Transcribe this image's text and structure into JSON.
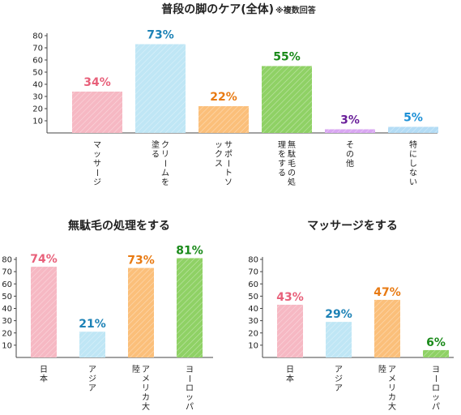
{
  "chart_data": [
    {
      "type": "bar",
      "title": "普段の脚のケア(全体)",
      "title_note": "※複数回答",
      "categories": [
        "マッサージ",
        "クリームを塗る",
        "サポートソックス",
        "無駄毛の処理をする",
        "その他",
        "特にしない"
      ],
      "values": [
        34,
        73,
        22,
        55,
        3,
        5
      ],
      "value_labels": [
        "34%",
        "73%",
        "22%",
        "55%",
        "3%",
        "5%"
      ],
      "colors": [
        "#f6b8c3",
        "#bfe6f5",
        "#fbbf7a",
        "#8fd165",
        "#d9a6f2",
        "#b3dcf5"
      ],
      "label_colors": [
        "#e8607a",
        "#1d82b6",
        "#e87a12",
        "#1a8a1a",
        "#6a1f9a",
        "#1d90d6"
      ],
      "ylim": [
        0,
        80
      ],
      "yticks": [
        10,
        20,
        30,
        40,
        50,
        60,
        70,
        80
      ]
    },
    {
      "type": "bar",
      "title": "無駄毛の処理をする",
      "categories": [
        "日本",
        "アジア",
        "アメリカ大陸",
        "ヨーロッパ"
      ],
      "values": [
        74,
        21,
        73,
        81
      ],
      "value_labels": [
        "74%",
        "21%",
        "73%",
        "81%"
      ],
      "colors": [
        "#f6b8c3",
        "#bfe6f5",
        "#fbbf7a",
        "#8fd165"
      ],
      "label_colors": [
        "#e8607a",
        "#1d82b6",
        "#e87a12",
        "#1a8a1a"
      ],
      "ylim": [
        0,
        80
      ],
      "yticks": [
        10,
        20,
        30,
        40,
        50,
        60,
        70,
        80
      ]
    },
    {
      "type": "bar",
      "title": "マッサージをする",
      "categories": [
        "日本",
        "アジア",
        "アメリカ大陸",
        "ヨーロッパ"
      ],
      "values": [
        43,
        29,
        47,
        6
      ],
      "value_labels": [
        "43%",
        "29%",
        "47%",
        "6%"
      ],
      "colors": [
        "#f6b8c3",
        "#bfe6f5",
        "#fbbf7a",
        "#8fd165"
      ],
      "label_colors": [
        "#e8607a",
        "#1d82b6",
        "#e87a12",
        "#1a8a1a"
      ],
      "ylim": [
        0,
        80
      ],
      "yticks": [
        10,
        20,
        30,
        40,
        50,
        60,
        70,
        80
      ]
    }
  ]
}
